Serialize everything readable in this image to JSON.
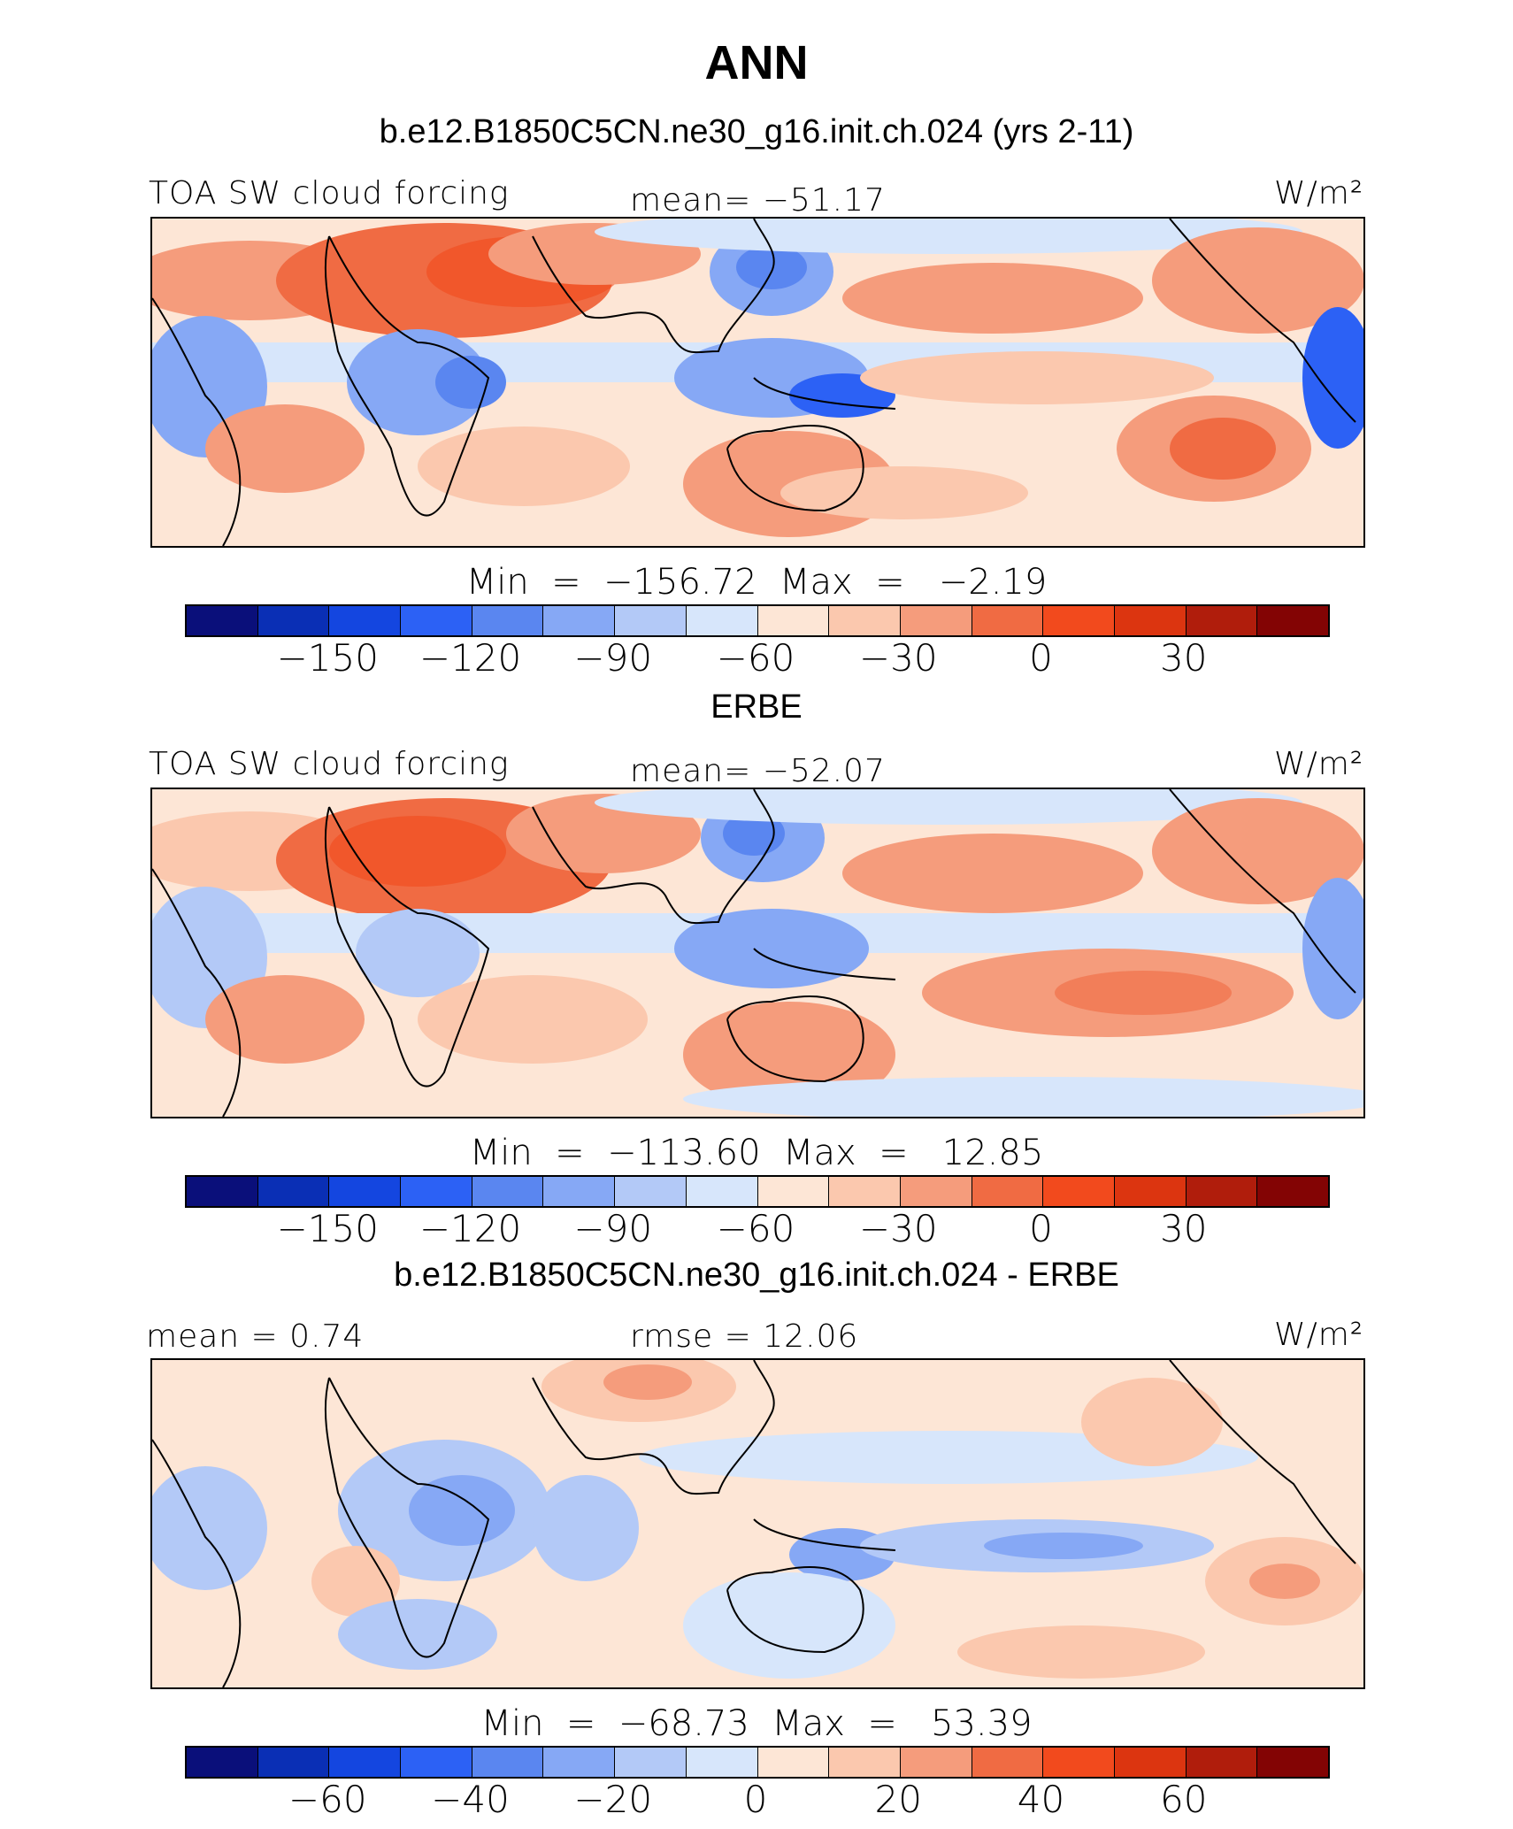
{
  "title": "ANN",
  "colors": [
    "#0a0f7a",
    "#0a2fb5",
    "#1446e0",
    "#2c61f5",
    "#5a86f0",
    "#86a8f5",
    "#b3c9f7",
    "#d7e6fb",
    "#fde6d6",
    "#fbc8ae",
    "#f59c7c",
    "#f06b43",
    "#f24a1d",
    "#dc3510",
    "#b01d0c",
    "#830404"
  ],
  "panels": [
    {
      "title": "b.e12.B1850C5CN.ne30_g16.init.ch.024 (yrs 2-11)",
      "left_text": "TOA SW cloud forcing",
      "center_text": "mean=  −51.17",
      "units": "W/m²",
      "minmax": "Min  =  −156.72  Max  =   −2.19",
      "tick_labels": [
        "−150",
        "−120",
        "−90",
        "−60",
        "−30",
        "0",
        "30"
      ]
    },
    {
      "title": "ERBE",
      "left_text": "TOA SW cloud forcing",
      "center_text": "mean=  −52.07",
      "units": "W/m²",
      "minmax": "Min  =  −113.60  Max  =   12.85",
      "tick_labels": [
        "−150",
        "−120",
        "−90",
        "−60",
        "−30",
        "0",
        "30"
      ]
    },
    {
      "title": "b.e12.B1850C5CN.ne30_g16.init.ch.024 - ERBE",
      "left_text": "mean  =    0.74",
      "center_text": "rmse  =   12.06",
      "units": "W/m²",
      "minmax": "Min  =  −68.73  Max  =   53.39",
      "tick_labels": [
        "−60",
        "−40",
        "−20",
        "0",
        "20",
        "40",
        "60"
      ]
    }
  ],
  "chart_data": [
    {
      "type": "heatmap",
      "title": "b.e12.B1850C5CN.ne30_g16.init.ch.024 (yrs 2-11)",
      "variable": "TOA SW cloud forcing",
      "units": "W/m²",
      "mean": -51.17,
      "min": -156.72,
      "max": -2.19,
      "colorbar_levels": [
        -150,
        -120,
        -90,
        -60,
        -30,
        0,
        30
      ]
    },
    {
      "type": "heatmap",
      "title": "ERBE",
      "variable": "TOA SW cloud forcing",
      "units": "W/m²",
      "mean": -52.07,
      "min": -113.6,
      "max": 12.85,
      "colorbar_levels": [
        -150,
        -120,
        -90,
        -60,
        -30,
        0,
        30
      ]
    },
    {
      "type": "heatmap",
      "title": "b.e12.B1850C5CN.ne30_g16.init.ch.024 - ERBE",
      "units": "W/m²",
      "mean": 0.74,
      "rmse": 12.06,
      "min": -68.73,
      "max": 53.39,
      "colorbar_levels": [
        -60,
        -40,
        -20,
        0,
        20,
        40,
        60
      ]
    }
  ]
}
